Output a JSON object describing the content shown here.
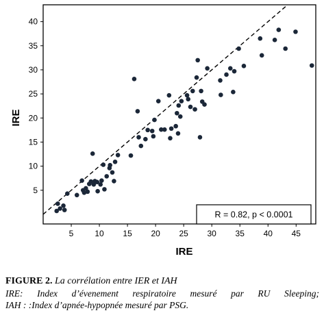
{
  "chart_data": {
    "type": "scatter",
    "title": "",
    "xlabel": "IRE",
    "ylabel": "IRE",
    "xlim": [
      0,
      48.5
    ],
    "ylim": [
      -2,
      43.5
    ],
    "x_ticks": [
      5,
      10,
      15,
      20,
      25,
      30,
      35,
      40,
      45
    ],
    "y_ticks": [
      5,
      10,
      15,
      20,
      25,
      30,
      35,
      40
    ],
    "grid": false,
    "reference_line": {
      "style": "dashed",
      "slope": 1,
      "intercept": 0
    },
    "annotation": "R = 0.82, p < 0.0001",
    "point_color": "#1b2738",
    "points": [
      [
        2.4,
        0.7
      ],
      [
        2.6,
        2.2
      ],
      [
        3.0,
        1.2
      ],
      [
        3.8,
        0.9
      ],
      [
        3.6,
        1.8
      ],
      [
        4.3,
        4.3
      ],
      [
        6.0,
        4.0
      ],
      [
        6.9,
        7.0
      ],
      [
        7.1,
        5.0
      ],
      [
        7.3,
        4.5
      ],
      [
        7.6,
        5.4
      ],
      [
        7.9,
        4.7
      ],
      [
        8.2,
        6.3
      ],
      [
        8.5,
        6.8
      ],
      [
        8.8,
        12.6
      ],
      [
        9.0,
        6.2
      ],
      [
        9.2,
        6.9
      ],
      [
        9.6,
        6.7
      ],
      [
        9.7,
        4.8
      ],
      [
        10.2,
        6.2
      ],
      [
        10.4,
        7.0
      ],
      [
        10.7,
        10.3
      ],
      [
        10.9,
        5.2
      ],
      [
        11.3,
        7.9
      ],
      [
        11.8,
        9.6
      ],
      [
        11.9,
        10.2
      ],
      [
        12.3,
        8.7
      ],
      [
        12.6,
        6.9
      ],
      [
        12.8,
        10.9
      ],
      [
        13.3,
        12.3
      ],
      [
        15.6,
        12.2
      ],
      [
        16.2,
        28.1
      ],
      [
        16.8,
        21.4
      ],
      [
        17.0,
        16.0
      ],
      [
        17.4,
        14.2
      ],
      [
        18.2,
        15.6
      ],
      [
        18.6,
        17.5
      ],
      [
        19.4,
        17.3
      ],
      [
        19.6,
        16.2
      ],
      [
        19.8,
        19.6
      ],
      [
        20.5,
        23.5
      ],
      [
        21.0,
        17.6
      ],
      [
        21.6,
        17.6
      ],
      [
        22.4,
        24.7
      ],
      [
        22.6,
        15.8
      ],
      [
        22.8,
        17.8
      ],
      [
        23.6,
        18.3
      ],
      [
        23.8,
        21.0
      ],
      [
        24.0,
        16.8
      ],
      [
        24.1,
        22.6
      ],
      [
        24.4,
        20.3
      ],
      [
        24.6,
        23.5
      ],
      [
        25.6,
        24.7
      ],
      [
        25.8,
        23.9
      ],
      [
        26.2,
        22.3
      ],
      [
        26.6,
        25.6
      ],
      [
        27.0,
        21.8
      ],
      [
        27.3,
        28.4
      ],
      [
        27.5,
        32.0
      ],
      [
        27.9,
        16.0
      ],
      [
        28.1,
        25.6
      ],
      [
        28.3,
        23.4
      ],
      [
        28.7,
        22.8
      ],
      [
        29.2,
        30.3
      ],
      [
        31.5,
        27.8
      ],
      [
        31.6,
        24.8
      ],
      [
        32.6,
        29.0
      ],
      [
        33.3,
        30.3
      ],
      [
        33.8,
        25.4
      ],
      [
        34.0,
        29.7
      ],
      [
        34.8,
        34.4
      ],
      [
        35.7,
        30.8
      ],
      [
        38.6,
        36.5
      ],
      [
        38.9,
        33.0
      ],
      [
        41.2,
        36.2
      ],
      [
        41.9,
        38.3
      ],
      [
        43.1,
        34.4
      ],
      [
        44.9,
        37.9
      ],
      [
        47.8,
        30.9
      ]
    ]
  },
  "caption": {
    "fig_num": "FIGURE 2.",
    "fig_title": "La corrélation entre IER et IAH",
    "line1": "IRE: Index d’évenement respiratoire mesuré par RU Sleeping;",
    "line2": "IAH : :Index d’apnée-hypopnée mesuré par PSG."
  }
}
